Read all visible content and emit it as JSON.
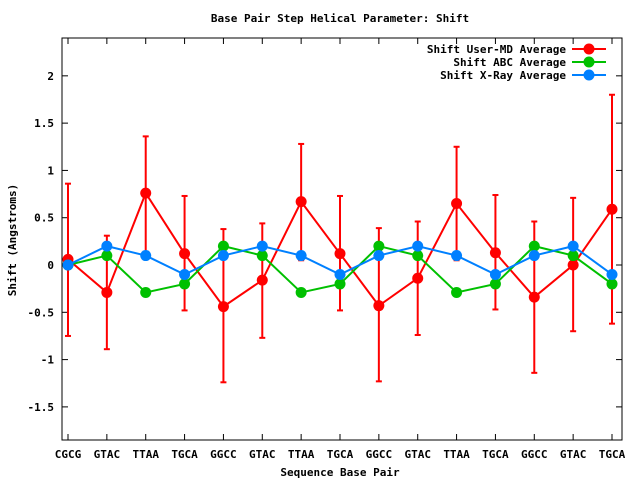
{
  "chart_data": {
    "type": "line",
    "title": "Base Pair Step Helical Parameter: Shift",
    "xlabel": "Sequence Base Pair",
    "ylabel": "Shift (Angstroms)",
    "categories": [
      "CGCG",
      "GTAC",
      "TTAA",
      "TGCA",
      "GGCC",
      "GTAC",
      "TTAA",
      "TGCA",
      "GGCC",
      "GTAC",
      "TTAA",
      "TGCA",
      "GGCC",
      "GTAC",
      "TGCA"
    ],
    "ylim": [
      -1.85,
      2.4
    ],
    "yticks": [
      -1.5,
      -1,
      -0.5,
      0,
      0.5,
      1,
      1.5,
      2
    ],
    "ytick_labels": [
      "-1.5",
      "-1",
      "-0.5",
      "0",
      "0.5",
      "1",
      "1.5",
      "2"
    ],
    "grid": false,
    "legend_position": "top-right",
    "series": [
      {
        "name": "Shift User-MD Average",
        "color": "#ff0000",
        "values": [
          0.06,
          -0.29,
          0.76,
          0.12,
          -0.44,
          -0.16,
          0.67,
          0.12,
          -0.43,
          -0.14,
          0.65,
          0.13,
          -0.34,
          0.0,
          0.59
        ],
        "error_high": [
          0.86,
          0.31,
          1.36,
          0.73,
          0.38,
          0.44,
          1.28,
          0.73,
          0.39,
          0.46,
          1.25,
          0.74,
          0.46,
          0.71,
          1.8
        ],
        "error_low": [
          -0.75,
          -0.89,
          0.14,
          -0.48,
          -1.24,
          -0.77,
          0.05,
          -0.48,
          -1.23,
          -0.74,
          0.05,
          -0.47,
          -1.14,
          -0.7,
          -0.62
        ]
      },
      {
        "name": "Shift ABC Average",
        "color": "#00c000",
        "values": [
          0.0,
          0.1,
          -0.29,
          -0.2,
          0.2,
          0.1,
          -0.29,
          -0.2,
          0.2,
          0.1,
          -0.29,
          -0.2,
          0.2,
          0.1,
          -0.2
        ]
      },
      {
        "name": "Shift X-Ray Average",
        "color": "#0080ff",
        "values": [
          0.0,
          0.2,
          0.1,
          -0.1,
          0.1,
          0.2,
          0.1,
          -0.1,
          0.1,
          0.2,
          0.1,
          -0.1,
          0.1,
          0.2,
          -0.1
        ]
      }
    ]
  }
}
